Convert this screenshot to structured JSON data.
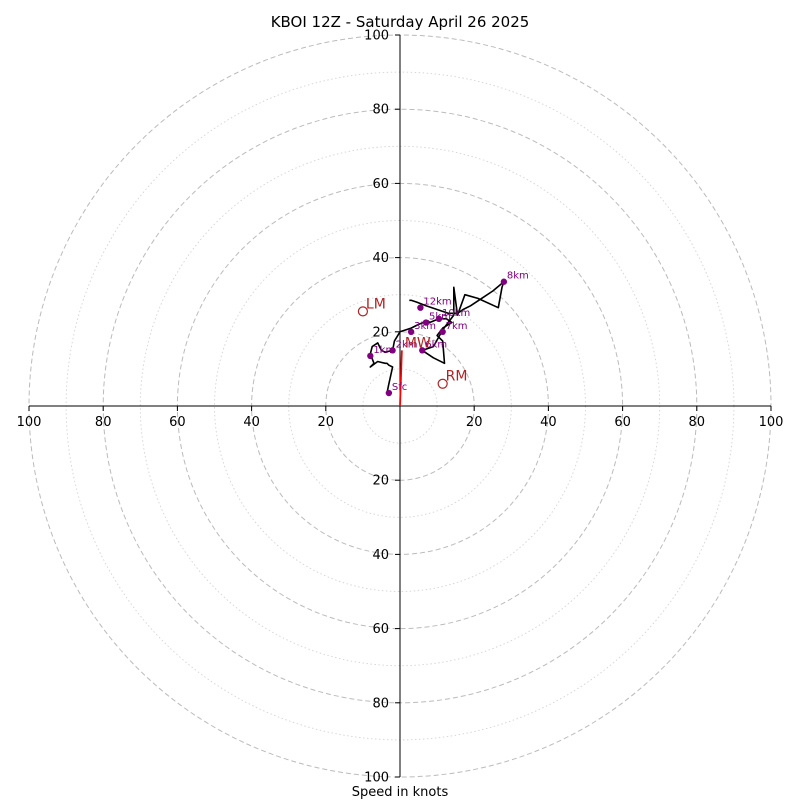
{
  "chart_data": {
    "type": "line",
    "title": "KBOI 12Z - Saturday April 26 2025",
    "xlabel": "Speed in knots",
    "units": "knots",
    "range": [
      -100,
      100
    ],
    "axis_ticks": [
      "100",
      "80",
      "60",
      "40",
      "20",
      "20",
      "40",
      "60",
      "80",
      "100"
    ],
    "ring_radii": [
      10,
      20,
      30,
      40,
      50,
      60,
      70,
      80,
      90,
      100
    ],
    "colors": {
      "hodograph": "#000000",
      "height_points": "#800080",
      "motion": "#b22222",
      "storm_vector": "#ff0000",
      "rings": "#bbbbbb"
    },
    "hodograph_uv": [
      [
        -3.5,
        3.5
      ],
      [
        -3,
        6
      ],
      [
        -2,
        10.5
      ],
      [
        -3,
        11
      ],
      [
        -3.5,
        11.5
      ],
      [
        -4,
        11.5
      ],
      [
        -6,
        12
      ],
      [
        -8,
        10.5
      ],
      [
        -7,
        11.5
      ],
      [
        -8,
        14
      ],
      [
        -7.5,
        16
      ],
      [
        -6,
        17
      ],
      [
        -5,
        15
      ],
      [
        -4,
        14.5
      ],
      [
        -2,
        15
      ],
      [
        -1.5,
        17.5
      ],
      [
        0,
        20
      ],
      [
        3,
        21
      ],
      [
        5,
        22
      ],
      [
        7.5,
        23
      ],
      [
        8,
        22.5
      ],
      [
        10.5,
        23.5
      ],
      [
        12.5,
        23.5
      ],
      [
        14,
        22.5
      ],
      [
        11.5,
        21
      ],
      [
        10,
        19
      ],
      [
        11.5,
        17.5
      ],
      [
        12,
        11.5
      ],
      [
        9,
        13
      ],
      [
        6,
        15
      ],
      [
        9,
        16
      ],
      [
        11.5,
        20.5
      ],
      [
        13,
        22.5
      ],
      [
        14.5,
        24.5
      ],
      [
        14.5,
        32
      ],
      [
        15.5,
        24.5
      ],
      [
        17.5,
        30
      ],
      [
        21,
        29
      ],
      [
        26.5,
        26.5
      ],
      [
        27.5,
        32
      ],
      [
        28,
        33.5
      ],
      [
        25,
        31
      ],
      [
        22,
        29
      ],
      [
        19,
        27
      ],
      [
        17,
        26
      ],
      [
        15.5,
        25
      ],
      [
        13,
        25
      ],
      [
        10,
        26
      ],
      [
        7,
        27
      ],
      [
        4.5,
        28
      ],
      [
        3,
        28.5
      ],
      [
        2.5,
        28.5
      ]
    ],
    "height_points": [
      {
        "label": "Sfc",
        "u": -3,
        "v": 3.5
      },
      {
        "label": "1km",
        "u": -8,
        "v": 13.5
      },
      {
        "label": "2km",
        "u": -2,
        "v": 15
      },
      {
        "label": "3km",
        "u": 3,
        "v": 20
      },
      {
        "label": "5km",
        "u": 7,
        "v": 22.5
      },
      {
        "label": "6km",
        "u": 6,
        "v": 15
      },
      {
        "label": "7km",
        "u": 11.5,
        "v": 20
      },
      {
        "label": "8km",
        "u": 28,
        "v": 33.5
      },
      {
        "label": "10km",
        "u": 10.5,
        "v": 23.5
      },
      {
        "label": "12km",
        "u": 5.5,
        "v": 26.5
      }
    ],
    "storm_motion": [
      {
        "label": "LM",
        "u": -10,
        "v": 25.5
      },
      {
        "label": "RM",
        "u": 11.5,
        "v": 6
      },
      {
        "label": "MW",
        "u": 0.5,
        "v": 15
      }
    ],
    "storm_vector": {
      "u": 0.5,
      "v": 15
    }
  }
}
